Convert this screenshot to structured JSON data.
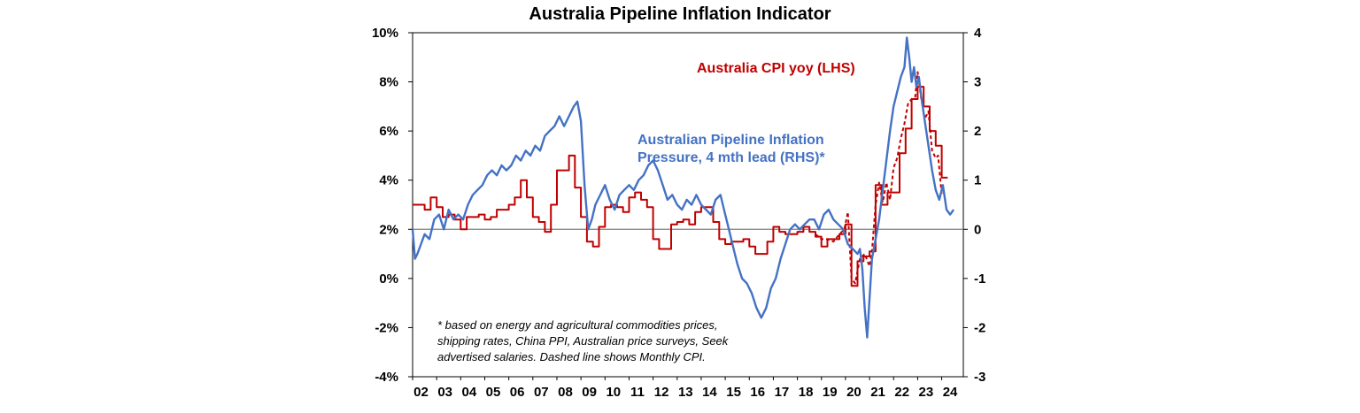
{
  "chart_data": {
    "type": "line",
    "title": "Australia Pipeline Inflation Indicator",
    "xlabel": "",
    "ylabel_left": "",
    "ylabel_right": "",
    "x_tick_labels": [
      "02",
      "03",
      "04",
      "05",
      "06",
      "07",
      "08",
      "09",
      "10",
      "11",
      "12",
      "13",
      "14",
      "15",
      "16",
      "17",
      "18",
      "19",
      "20",
      "21",
      "22",
      "23",
      "24"
    ],
    "x_range": [
      2002.0,
      2024.9
    ],
    "ylim_left": [
      -4,
      10
    ],
    "left_ticks": [
      "10%",
      "8%",
      "6%",
      "4%",
      "2%",
      "0%",
      "-2%",
      "-4%"
    ],
    "ylim_right": [
      -3,
      4
    ],
    "right_ticks": [
      "4",
      "3",
      "2",
      "1",
      "0",
      "-1",
      "-2",
      "-3"
    ],
    "grid": false,
    "zero_line_right": 0,
    "series": [
      {
        "name": "Australia CPI yoy (LHS)",
        "axis": "left",
        "color": "#c00000",
        "style": "step",
        "x": [
          2002.0,
          2002.5,
          2002.75,
          2003.0,
          2003.25,
          2003.5,
          2003.75,
          2004.0,
          2004.25,
          2004.5,
          2004.75,
          2005.0,
          2005.25,
          2005.5,
          2005.75,
          2006.0,
          2006.25,
          2006.5,
          2006.75,
          2007.0,
          2007.25,
          2007.5,
          2007.75,
          2008.0,
          2008.25,
          2008.5,
          2008.75,
          2009.0,
          2009.25,
          2009.5,
          2009.75,
          2010.0,
          2010.25,
          2010.5,
          2010.75,
          2011.0,
          2011.25,
          2011.5,
          2011.75,
          2012.0,
          2012.25,
          2012.5,
          2012.75,
          2013.0,
          2013.25,
          2013.5,
          2013.75,
          2014.0,
          2014.25,
          2014.5,
          2014.75,
          2015.0,
          2015.25,
          2015.5,
          2015.75,
          2016.0,
          2016.25,
          2016.5,
          2016.75,
          2017.0,
          2017.25,
          2017.5,
          2017.75,
          2018.0,
          2018.25,
          2018.5,
          2018.75,
          2019.0,
          2019.25,
          2019.5,
          2019.75,
          2020.0,
          2020.25,
          2020.5,
          2020.75,
          2021.0,
          2021.25,
          2021.5,
          2021.75,
          2022.0,
          2022.25,
          2022.5,
          2022.75,
          2023.0,
          2023.25,
          2023.5,
          2023.75,
          2024.0
        ],
        "values": [
          3.0,
          2.8,
          3.3,
          2.9,
          2.5,
          2.6,
          2.4,
          2.0,
          2.5,
          2.5,
          2.6,
          2.4,
          2.5,
          2.8,
          2.8,
          3.0,
          3.3,
          4.0,
          3.3,
          2.5,
          2.3,
          1.9,
          3.0,
          4.4,
          4.4,
          5.0,
          3.7,
          2.5,
          1.5,
          1.3,
          2.1,
          2.9,
          3.0,
          2.9,
          2.7,
          3.3,
          3.5,
          3.2,
          2.9,
          1.6,
          1.2,
          1.2,
          2.2,
          2.3,
          2.4,
          2.2,
          2.7,
          2.9,
          2.9,
          2.3,
          1.6,
          1.4,
          1.5,
          1.5,
          1.6,
          1.3,
          1.0,
          1.0,
          1.5,
          2.1,
          1.9,
          1.8,
          1.8,
          1.9,
          2.1,
          1.9,
          1.7,
          1.3,
          1.6,
          1.6,
          1.8,
          2.2,
          -0.3,
          0.7,
          0.9,
          1.1,
          3.8,
          3.0,
          3.5,
          3.5,
          5.1,
          6.1,
          7.3,
          7.8,
          7.0,
          6.0,
          5.4,
          4.1
        ]
      },
      {
        "name": "Monthly CPI",
        "axis": "left",
        "color": "#c00000",
        "style": "dashed",
        "x": [
          2018.75,
          2019.0,
          2019.25,
          2019.5,
          2019.75,
          2019.95,
          2020.1,
          2020.25,
          2020.4,
          2020.6,
          2020.8,
          2021.0,
          2021.1,
          2021.25,
          2021.4,
          2021.55,
          2021.7,
          2021.85,
          2022.0,
          2022.15,
          2022.3,
          2022.45,
          2022.6,
          2022.75,
          2022.9,
          2023.0,
          2023.15,
          2023.3,
          2023.45,
          2023.6,
          2023.75,
          2023.85,
          2024.0
        ],
        "values": [
          1.8,
          1.6,
          1.6,
          1.5,
          1.8,
          2.0,
          2.7,
          0.0,
          -0.2,
          0.8,
          1.0,
          0.5,
          1.1,
          3.0,
          3.9,
          3.1,
          3.9,
          3.2,
          4.5,
          4.9,
          5.7,
          6.3,
          7.1,
          7.3,
          7.4,
          8.4,
          7.3,
          6.5,
          6.8,
          5.2,
          4.9,
          5.0,
          3.4
        ]
      },
      {
        "name": "Australian Pipeline Inflation Pressure, 4 mth lead (RHS)*",
        "axis": "right",
        "color": "#4472c4",
        "style": "solid",
        "x": [
          2002.0,
          2002.1,
          2002.2,
          2002.35,
          2002.5,
          2002.7,
          2002.9,
          2003.1,
          2003.3,
          2003.5,
          2003.7,
          2003.9,
          2004.1,
          2004.3,
          2004.5,
          2004.7,
          2004.9,
          2005.1,
          2005.3,
          2005.5,
          2005.7,
          2005.9,
          2006.1,
          2006.3,
          2006.5,
          2006.7,
          2006.9,
          2007.1,
          2007.3,
          2007.5,
          2007.7,
          2007.9,
          2008.1,
          2008.3,
          2008.5,
          2008.7,
          2008.85,
          2009.0,
          2009.15,
          2009.3,
          2009.45,
          2009.6,
          2009.8,
          2010.0,
          2010.2,
          2010.4,
          2010.6,
          2010.8,
          2011.0,
          2011.2,
          2011.4,
          2011.6,
          2011.8,
          2012.0,
          2012.2,
          2012.4,
          2012.6,
          2012.8,
          2013.0,
          2013.2,
          2013.4,
          2013.6,
          2013.8,
          2014.0,
          2014.2,
          2014.4,
          2014.6,
          2014.8,
          2015.0,
          2015.15,
          2015.3,
          2015.5,
          2015.7,
          2015.9,
          2016.1,
          2016.3,
          2016.5,
          2016.7,
          2016.9,
          2017.1,
          2017.3,
          2017.5,
          2017.7,
          2017.9,
          2018.1,
          2018.3,
          2018.5,
          2018.7,
          2018.9,
          2019.1,
          2019.3,
          2019.5,
          2019.7,
          2019.9,
          2020.1,
          2020.3,
          2020.5,
          2020.6,
          2020.7,
          2020.8,
          2020.9,
          2021.0,
          2021.1,
          2021.25,
          2021.4,
          2021.55,
          2021.7,
          2021.85,
          2022.0,
          2022.15,
          2022.3,
          2022.45,
          2022.55,
          2022.65,
          2022.75,
          2022.85,
          2022.95,
          2023.05,
          2023.15,
          2023.3,
          2023.45,
          2023.6,
          2023.75,
          2023.9,
          2024.05,
          2024.2,
          2024.35,
          2024.5
        ],
        "values": [
          0.0,
          -0.6,
          -0.5,
          -0.3,
          -0.1,
          -0.2,
          0.2,
          0.3,
          0.0,
          0.4,
          0.2,
          0.3,
          0.2,
          0.5,
          0.7,
          0.8,
          0.9,
          1.1,
          1.2,
          1.1,
          1.3,
          1.2,
          1.3,
          1.5,
          1.4,
          1.6,
          1.5,
          1.7,
          1.6,
          1.9,
          2.0,
          2.1,
          2.3,
          2.1,
          2.3,
          2.5,
          2.6,
          2.2,
          0.9,
          0.0,
          0.2,
          0.5,
          0.7,
          0.9,
          0.6,
          0.4,
          0.7,
          0.8,
          0.9,
          0.8,
          1.0,
          1.1,
          1.3,
          1.4,
          1.2,
          0.9,
          0.6,
          0.7,
          0.5,
          0.4,
          0.6,
          0.5,
          0.7,
          0.5,
          0.4,
          0.3,
          0.6,
          0.7,
          0.3,
          0.0,
          -0.3,
          -0.7,
          -1.0,
          -1.1,
          -1.3,
          -1.6,
          -1.8,
          -1.6,
          -1.2,
          -1.0,
          -0.6,
          -0.3,
          0.0,
          0.1,
          0.0,
          0.1,
          0.2,
          0.2,
          0.0,
          0.3,
          0.4,
          0.2,
          0.1,
          0.0,
          -0.3,
          -0.4,
          -0.5,
          -0.4,
          -0.8,
          -1.6,
          -2.2,
          -1.4,
          -0.6,
          -0.2,
          0.2,
          0.8,
          1.4,
          2.0,
          2.5,
          2.8,
          3.1,
          3.3,
          3.9,
          3.5,
          3.0,
          3.3,
          2.9,
          3.1,
          2.7,
          2.2,
          1.7,
          1.2,
          0.8,
          0.6,
          0.9,
          0.4,
          0.3,
          0.4
        ]
      }
    ]
  },
  "annotations": {
    "cpi_label": "Australia CPI yoy (LHS)",
    "pipeline_label_line1": "Australian Pipeline Inflation",
    "pipeline_label_line2": "Pressure, 4 mth lead (RHS)*",
    "note_line1": "* based on energy and agricultural commodities prices,",
    "note_line2": "shipping rates, China PPI, Australian price surveys, Seek",
    "note_line3": "advertised salaries. Dashed line shows Monthly CPI."
  }
}
